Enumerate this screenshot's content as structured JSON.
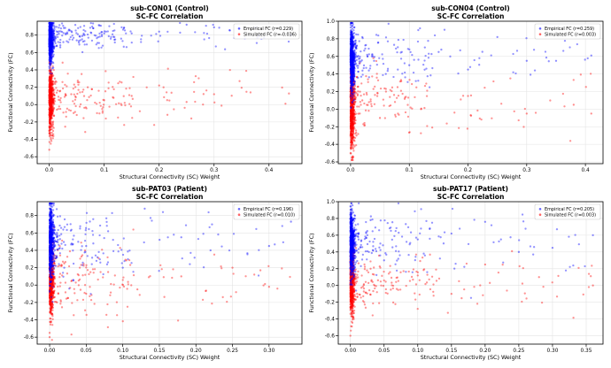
{
  "colors": {
    "empirical": "#0000ff",
    "simulated": "#ff0000",
    "grid": "#e3e3e3"
  },
  "chart_data": [
    {
      "type": "scatter",
      "title": "sub-CON01 (Control)",
      "subtitle": "SC-FC Correlation",
      "xlabel": "Structural Connectivity (SC) Weight",
      "ylabel": "Functional Connectivity (FC)",
      "xlim": [
        -0.022,
        0.46
      ],
      "ylim": [
        -0.68,
        0.96
      ],
      "xticks": [
        "0.0",
        "0.1",
        "0.2",
        "0.3",
        "0.4"
      ],
      "yticks": [
        "-0.6",
        "-0.4",
        "-0.2",
        "0.0",
        "0.2",
        "0.4",
        "0.6",
        "0.8"
      ],
      "grid": true,
      "legend_position": "top-right",
      "legend": [
        "Empirical FC (r=0.229)",
        "Simulated FC (r=-0.036)"
      ],
      "empirical": {
        "x_max": 0.44,
        "y_center": 0.72,
        "y_spread": 0.12,
        "tail_center": 0.8,
        "tail_spread": 0.07
      },
      "simulated": {
        "x_max": 0.44,
        "y_center": 0.06,
        "y_spread": 0.18,
        "tail_center": 0.1,
        "tail_spread": 0.14
      },
      "series": [
        {
          "name": "Empirical FC (r=0.229)",
          "values": [
            [
              0.0,
              0.93
            ],
            [
              0.0,
              0.85
            ],
            [
              0.002,
              0.78
            ],
            [
              0.003,
              0.62
            ],
            [
              0.005,
              0.55
            ],
            [
              0.01,
              0.74
            ],
            [
              0.02,
              0.66
            ],
            [
              0.03,
              0.82
            ],
            [
              0.05,
              0.74
            ],
            [
              0.06,
              0.79
            ],
            [
              0.08,
              0.88
            ],
            [
              0.1,
              0.82
            ],
            [
              0.12,
              0.75
            ],
            [
              0.15,
              0.82
            ],
            [
              0.2,
              0.84
            ],
            [
              0.25,
              0.92
            ],
            [
              0.3,
              0.89
            ],
            [
              0.44,
              0.8
            ]
          ]
        },
        {
          "name": "Simulated FC (r=-0.036)",
          "values": [
            [
              0.0,
              0.39
            ],
            [
              0.0,
              0.2
            ],
            [
              0.0,
              -0.3
            ],
            [
              0.0,
              -0.52
            ],
            [
              0.003,
              -0.4
            ],
            [
              0.005,
              0.05
            ],
            [
              0.01,
              0.3
            ],
            [
              0.02,
              -0.05
            ],
            [
              0.04,
              0.12
            ],
            [
              0.05,
              -0.12
            ],
            [
              0.07,
              0.2
            ],
            [
              0.1,
              0.05
            ],
            [
              0.15,
              0.1
            ],
            [
              0.2,
              0.22
            ],
            [
              0.25,
              0.03
            ],
            [
              0.3,
              0.12
            ],
            [
              0.43,
              0.01
            ]
          ]
        }
      ]
    },
    {
      "type": "scatter",
      "title": "sub-CON04 (Control)",
      "subtitle": "SC-FC Correlation",
      "xlabel": "Structural Connectivity (SC) Weight",
      "ylabel": "Functional Connectivity (FC)",
      "xlim": [
        -0.021,
        0.43
      ],
      "ylim": [
        -0.62,
        1.0
      ],
      "xticks": [
        "0.0",
        "0.1",
        "0.2",
        "0.3",
        "0.4"
      ],
      "yticks": [
        "-0.6",
        "-0.4",
        "-0.2",
        "0.0",
        "0.2",
        "0.4",
        "0.6",
        "0.8",
        "1.0"
      ],
      "grid": true,
      "legend_position": "top-right",
      "legend": [
        "Empirical FC (r=0.259)",
        "Simulated FC (r=0.003)"
      ],
      "empirical": {
        "x_max": 0.41,
        "y_center": 0.55,
        "y_spread": 0.18,
        "tail_center": 0.6,
        "tail_spread": 0.14
      },
      "simulated": {
        "x_max": 0.41,
        "y_center": 0.0,
        "y_spread": 0.22,
        "tail_center": 0.1,
        "tail_spread": 0.2
      },
      "series": [
        {
          "name": "Empirical FC (r=0.259)",
          "values": [
            [
              0.0,
              0.96
            ],
            [
              0.0,
              0.85
            ],
            [
              0.003,
              0.7
            ],
            [
              0.005,
              0.45
            ],
            [
              0.01,
              0.6
            ],
            [
              0.02,
              0.82
            ],
            [
              0.04,
              0.55
            ],
            [
              0.06,
              0.4
            ],
            [
              0.1,
              0.5
            ],
            [
              0.15,
              0.65
            ],
            [
              0.2,
              0.45
            ],
            [
              0.25,
              0.82
            ],
            [
              0.3,
              0.55
            ],
            [
              0.35,
              0.55
            ],
            [
              0.41,
              0.61
            ]
          ]
        },
        {
          "name": "Simulated FC (r=0.003)",
          "values": [
            [
              0.0,
              0.43
            ],
            [
              0.0,
              -0.5
            ],
            [
              0.002,
              -0.55
            ],
            [
              0.005,
              0.2
            ],
            [
              0.01,
              -0.3
            ],
            [
              0.02,
              0.1
            ],
            [
              0.05,
              -0.1
            ],
            [
              0.08,
              0.25
            ],
            [
              0.12,
              0.0
            ],
            [
              0.2,
              0.15
            ],
            [
              0.3,
              -0.05
            ],
            [
              0.38,
              0.05
            ],
            [
              0.41,
              -0.05
            ]
          ]
        }
      ]
    },
    {
      "type": "scatter",
      "title": "sub-PAT03 (Patient)",
      "subtitle": "SC-FC Correlation",
      "xlabel": "Structural Connectivity (SC) Weight",
      "ylabel": "Functional Connectivity (FC)",
      "xlim": [
        -0.017,
        0.345
      ],
      "ylim": [
        -0.68,
        0.96
      ],
      "xticks": [
        "0.00",
        "0.05",
        "0.10",
        "0.15",
        "0.20",
        "0.25",
        "0.30"
      ],
      "yticks": [
        "-0.6",
        "-0.4",
        "-0.2",
        "0.0",
        "0.2",
        "0.4",
        "0.6",
        "0.8"
      ],
      "grid": true,
      "legend_position": "top-right",
      "legend": [
        "Empirical FC (r=0.196)",
        "Simulated FC (r=0.010)"
      ],
      "empirical": {
        "x_max": 0.33,
        "y_center": 0.5,
        "y_spread": 0.2,
        "tail_center": 0.48,
        "tail_spread": 0.22
      },
      "simulated": {
        "x_max": 0.33,
        "y_center": 0.05,
        "y_spread": 0.2,
        "tail_center": 0.05,
        "tail_spread": 0.2
      },
      "series": [
        {
          "name": "Empirical FC (r=0.196)",
          "values": [
            [
              0.0,
              0.92
            ],
            [
              0.0,
              0.75
            ],
            [
              0.002,
              0.5
            ],
            [
              0.005,
              0.3
            ],
            [
              0.01,
              0.6
            ],
            [
              0.02,
              0.2
            ],
            [
              0.05,
              0.45
            ],
            [
              0.08,
              0.62
            ],
            [
              0.1,
              0.2
            ],
            [
              0.13,
              0.88
            ],
            [
              0.18,
              0.55
            ],
            [
              0.22,
              0.4
            ],
            [
              0.26,
              0.8
            ],
            [
              0.3,
              0.45
            ],
            [
              0.33,
              0.73
            ]
          ]
        },
        {
          "name": "Simulated FC (r=0.010)",
          "values": [
            [
              0.0,
              0.4
            ],
            [
              0.0,
              -0.55
            ],
            [
              0.0,
              -0.6
            ],
            [
              0.003,
              0.1
            ],
            [
              0.01,
              -0.2
            ],
            [
              0.02,
              0.25
            ],
            [
              0.05,
              -0.1
            ],
            [
              0.08,
              0.15
            ],
            [
              0.12,
              -0.05
            ],
            [
              0.18,
              0.1
            ],
            [
              0.25,
              0.2
            ],
            [
              0.3,
              -0.02
            ]
          ]
        }
      ]
    },
    {
      "type": "scatter",
      "title": "sub-PAT17 (Patient)",
      "subtitle": "SC-FC Correlation",
      "xlabel": "Structural Connectivity (SC) Weight",
      "ylabel": "Functional Connectivity (FC)",
      "xlim": [
        -0.018,
        0.375
      ],
      "ylim": [
        -0.7,
        1.0
      ],
      "xticks": [
        "0.00",
        "0.05",
        "0.10",
        "0.15",
        "0.20",
        "0.25",
        "0.30",
        "0.35"
      ],
      "yticks": [
        "-0.6",
        "-0.4",
        "-0.2",
        "0.0",
        "0.2",
        "0.4",
        "0.6",
        "0.8",
        "1.0"
      ],
      "grid": true,
      "legend_position": "top-right",
      "legend": [
        "Empirical FC (r=0.205)",
        "Simulated FC (r=0.003)"
      ],
      "empirical": {
        "x_max": 0.36,
        "y_center": 0.5,
        "y_spread": 0.18,
        "tail_center": 0.5,
        "tail_spread": 0.2
      },
      "simulated": {
        "x_max": 0.36,
        "y_center": 0.05,
        "y_spread": 0.2,
        "tail_center": 0.05,
        "tail_spread": 0.18
      },
      "series": [
        {
          "name": "Empirical FC (r=0.205)",
          "values": [
            [
              0.0,
              0.85
            ],
            [
              0.0,
              0.7
            ],
            [
              0.003,
              0.5
            ],
            [
              0.005,
              0.2
            ],
            [
              0.01,
              0.62
            ],
            [
              0.03,
              0.78
            ],
            [
              0.05,
              0.3
            ],
            [
              0.1,
              0.55
            ],
            [
              0.15,
              0.62
            ],
            [
              0.2,
              0.76
            ],
            [
              0.25,
              0.4
            ],
            [
              0.3,
              0.45
            ],
            [
              0.36,
              0.6
            ]
          ]
        },
        {
          "name": "Simulated FC (r=0.003)",
          "values": [
            [
              0.0,
              0.4
            ],
            [
              0.0,
              -0.6
            ],
            [
              0.003,
              -0.3
            ],
            [
              0.005,
              0.3
            ],
            [
              0.01,
              -0.1
            ],
            [
              0.03,
              0.2
            ],
            [
              0.06,
              -0.05
            ],
            [
              0.1,
              0.12
            ],
            [
              0.15,
              -0.1
            ],
            [
              0.2,
              0.25
            ],
            [
              0.28,
              0.1
            ],
            [
              0.36,
              0.0
            ]
          ]
        }
      ]
    }
  ]
}
